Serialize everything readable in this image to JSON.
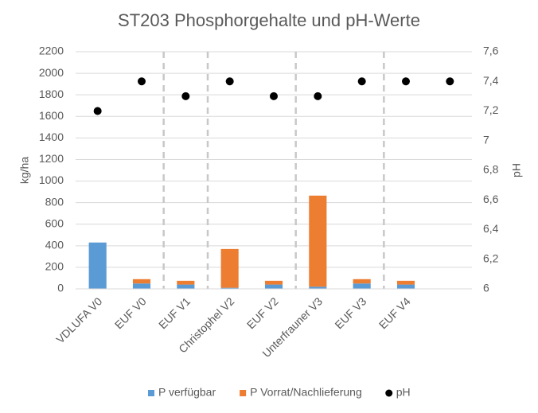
{
  "chart_data": {
    "type": "bar",
    "stacked": true,
    "title": "ST203 Phosphorgehalte und pH-Werte",
    "y_label": "kg/ha",
    "y2_label": "pH",
    "categories": [
      "VDLUFA V0",
      "EUF V0",
      "EUF V1",
      "Christophel V2",
      "EUF V2",
      "Unterfrauner V3",
      "EUF V3",
      "EUF V4",
      null
    ],
    "series": [
      {
        "name": "P verfügbar",
        "type": "bar",
        "color": "#5b9bd5",
        "values": [
          430,
          50,
          40,
          10,
          40,
          20,
          50,
          40,
          null
        ]
      },
      {
        "name": "P Vorrat/Nachlieferung",
        "type": "bar",
        "color": "#ed7d31",
        "values": [
          0,
          40,
          35,
          360,
          35,
          845,
          40,
          35,
          null
        ]
      },
      {
        "name": "pH",
        "type": "scatter",
        "axis": "y2",
        "color": "#000000",
        "values": [
          7.2,
          7.4,
          7.3,
          7.4,
          7.3,
          7.3,
          7.4,
          7.4,
          7.4
        ]
      }
    ],
    "ylim": [
      0,
      2200
    ],
    "yticks": [
      0,
      200,
      400,
      600,
      800,
      1000,
      1200,
      1400,
      1600,
      1800,
      2000,
      2200
    ],
    "y2lim": [
      6,
      7.6
    ],
    "y2ticks": [
      {
        "value": 6,
        "label": "6"
      },
      {
        "value": 6.2,
        "label": "6,2"
      },
      {
        "value": 6.4,
        "label": "6,4"
      },
      {
        "value": 6.6,
        "label": "6,6"
      },
      {
        "value": 6.8,
        "label": "6,8"
      },
      {
        "value": 7,
        "label": "7"
      },
      {
        "value": 7.2,
        "label": "7,2"
      },
      {
        "value": 7.4,
        "label": "7,4"
      },
      {
        "value": 7.6,
        "label": "7,6"
      }
    ],
    "grid": true,
    "legend": "bottom"
  }
}
